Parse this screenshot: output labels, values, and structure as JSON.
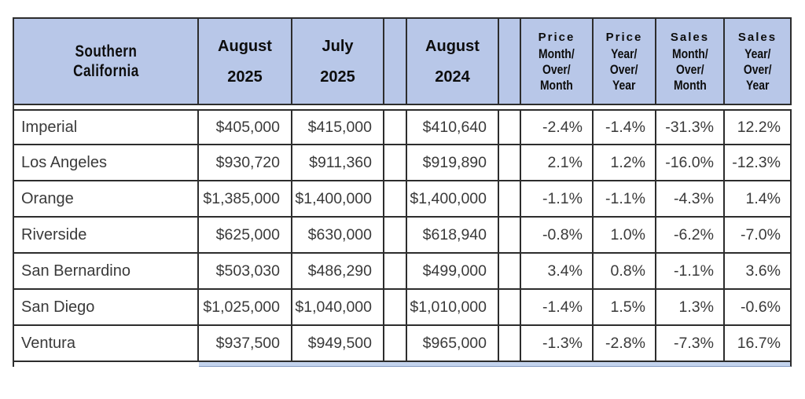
{
  "colors": {
    "header_bg": "#b8c7e8",
    "border_dark": "#2d2d2d",
    "data_text": "#3a3a3a",
    "strip_bg": "#c4d4ee"
  },
  "table": {
    "region_header": {
      "line1": "Southern",
      "line2": "California"
    },
    "month_columns": [
      {
        "id": "aug2025",
        "line1": "August",
        "line2": "2025"
      },
      {
        "id": "jul2025",
        "line1": "July",
        "line2": "2025"
      },
      {
        "id": "aug2024",
        "line1": "August",
        "line2": "2024"
      }
    ],
    "metric_columns": [
      {
        "id": "price_mom",
        "category": "Price",
        "lines": [
          "Month/",
          "Over/",
          "Month"
        ]
      },
      {
        "id": "price_yoy",
        "category": "Price",
        "lines": [
          "Year/",
          "Over/",
          "Year"
        ]
      },
      {
        "id": "sales_mom",
        "category": "Sales",
        "lines": [
          "Month/",
          "Over/",
          "Month"
        ]
      },
      {
        "id": "sales_yoy",
        "category": "Sales",
        "lines": [
          "Year/",
          "Over/",
          "Year"
        ]
      }
    ],
    "rows": [
      {
        "county": "Imperial",
        "aug2025": "$405,000",
        "jul2025": "$415,000",
        "aug2024": "$410,640",
        "price_mom": "-2.4%",
        "price_yoy": "-1.4%",
        "sales_mom": "-31.3%",
        "sales_yoy": "12.2%"
      },
      {
        "county": "Los Angeles",
        "aug2025": "$930,720",
        "jul2025": "$911,360",
        "aug2024": "$919,890",
        "price_mom": "2.1%",
        "price_yoy": "1.2%",
        "sales_mom": "-16.0%",
        "sales_yoy": "-12.3%"
      },
      {
        "county": "Orange",
        "aug2025": "$1,385,000",
        "jul2025": "$1,400,000",
        "aug2024": "$1,400,000",
        "price_mom": "-1.1%",
        "price_yoy": "-1.1%",
        "sales_mom": "-4.3%",
        "sales_yoy": "1.4%"
      },
      {
        "county": "Riverside",
        "aug2025": "$625,000",
        "jul2025": "$630,000",
        "aug2024": "$618,940",
        "price_mom": "-0.8%",
        "price_yoy": "1.0%",
        "sales_mom": "-6.2%",
        "sales_yoy": "-7.0%"
      },
      {
        "county": "San Bernardino",
        "aug2025": "$503,030",
        "jul2025": "$486,290",
        "aug2024": "$499,000",
        "price_mom": "3.4%",
        "price_yoy": "0.8%",
        "sales_mom": "-1.1%",
        "sales_yoy": "3.6%"
      },
      {
        "county": "San Diego",
        "aug2025": "$1,025,000",
        "jul2025": "$1,040,000",
        "aug2024": "$1,010,000",
        "price_mom": "-1.4%",
        "price_yoy": "1.5%",
        "sales_mom": "1.3%",
        "sales_yoy": "-0.6%"
      },
      {
        "county": "Ventura",
        "aug2025": "$937,500",
        "jul2025": "$949,500",
        "aug2024": "$965,000",
        "price_mom": "-1.3%",
        "price_yoy": "-2.8%",
        "sales_mom": "-7.3%",
        "sales_yoy": "16.7%"
      }
    ]
  }
}
